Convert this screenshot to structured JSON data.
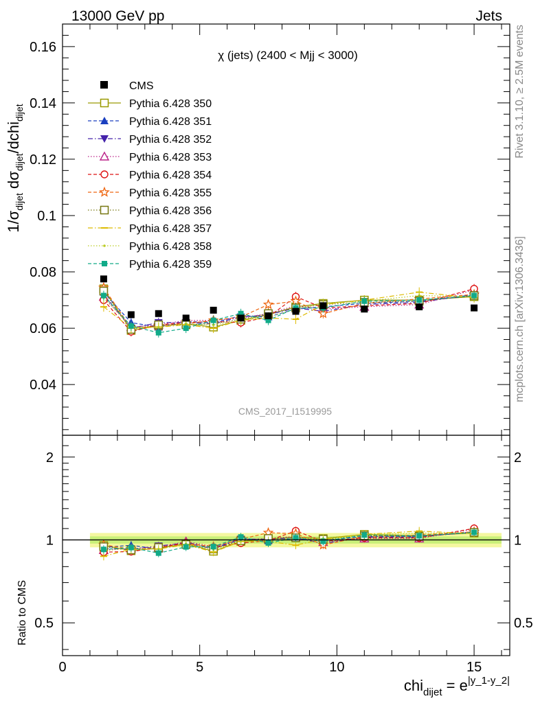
{
  "header": {
    "left": "13000 GeV pp",
    "right": "Jets",
    "side_rivet": "Rivet 3.1.10, ≥ 2.5M events",
    "side_mcplots": "mcplots.cern.ch [arXiv:1306.3436]"
  },
  "chart_data": {
    "type": "scatter",
    "title": "χ (jets) (2400 < Mjj < 3000)",
    "watermark": "CMS_2017_I1519995",
    "ylabel_main": "1/σ_dijet dσ_dijet/dchi_dijet",
    "ylabel_ratio": "Ratio to CMS",
    "xlabel": "chi_dijet = e^|y_1-y_2|",
    "xlim": [
      0,
      16.3
    ],
    "ylim_main": [
      0.022,
      0.168
    ],
    "ylim_ratio": [
      0.38,
      2.4
    ],
    "ratio_log_scale": true,
    "x_ticks": [
      "0",
      "5",
      "10",
      "15"
    ],
    "y_ticks_main": [
      "0.04",
      "0.06",
      "0.08",
      "0.1",
      "0.12",
      "0.14",
      "0.16"
    ],
    "y_ticks_ratio": [
      "0.5",
      "1",
      "2"
    ],
    "x": [
      1.5,
      2.5,
      3.5,
      4.5,
      5.5,
      6.5,
      7.5,
      8.5,
      9.5,
      11.0,
      13.0,
      15.0
    ],
    "data_series": {
      "name": "CMS",
      "values": [
        0.0775,
        0.0648,
        0.0652,
        0.0636,
        0.0664,
        0.0636,
        0.0644,
        0.066,
        0.068,
        0.0668,
        0.0676,
        0.0672
      ],
      "ratio_band_inner": 0.03,
      "ratio_band_outer": 0.06
    },
    "series": [
      {
        "name": "Pythia 6.428 350",
        "color": "#999900",
        "marker": "open-square",
        "dash": "solid",
        "values": [
          0.074,
          0.0592,
          0.0608,
          0.0616,
          0.0604,
          0.0628,
          0.0648,
          0.0676,
          0.0688,
          0.07,
          0.07,
          0.0712
        ]
      },
      {
        "name": "Pythia 6.428 351",
        "color": "#1a3fbf",
        "marker": "filled-triangle-up",
        "dash": "dashed",
        "values": [
          0.0728,
          0.062,
          0.0604,
          0.0624,
          0.062,
          0.0644,
          0.064,
          0.0668,
          0.0676,
          0.0688,
          0.0696,
          0.0716
        ]
      },
      {
        "name": "Pythia 6.428 352",
        "color": "#4422aa",
        "marker": "filled-triangle-down",
        "dash": "dashdot",
        "values": [
          0.072,
          0.06,
          0.062,
          0.062,
          0.0616,
          0.064,
          0.0648,
          0.0672,
          0.066,
          0.0684,
          0.0692,
          0.072
        ]
      },
      {
        "name": "Pythia 6.428 353",
        "color": "#bb2288",
        "marker": "open-triangle-up",
        "dash": "dotted",
        "values": [
          0.0712,
          0.0604,
          0.0612,
          0.0628,
          0.0628,
          0.0636,
          0.0652,
          0.068,
          0.0668,
          0.0676,
          0.0684,
          0.0736
        ]
      },
      {
        "name": "Pythia 6.428 354",
        "color": "#dd1111",
        "marker": "open-circle",
        "dash": "dashed",
        "values": [
          0.07,
          0.0588,
          0.0612,
          0.062,
          0.0624,
          0.062,
          0.064,
          0.0712,
          0.0672,
          0.068,
          0.0688,
          0.074
        ]
      },
      {
        "name": "Pythia 6.428 355",
        "color": "#ee6611",
        "marker": "open-star",
        "dash": "dashed",
        "values": [
          0.0744,
          0.06,
          0.0608,
          0.0616,
          0.0628,
          0.064,
          0.0684,
          0.0696,
          0.0652,
          0.0688,
          0.0704,
          0.072
        ]
      },
      {
        "name": "Pythia 6.428 356",
        "color": "#777711",
        "marker": "open-square",
        "dash": "dotted",
        "values": [
          0.0732,
          0.0596,
          0.0612,
          0.0612,
          0.0616,
          0.0632,
          0.0652,
          0.0672,
          0.0684,
          0.0692,
          0.0696,
          0.0716
        ]
      },
      {
        "name": "Pythia 6.428 357",
        "color": "#ddbb00",
        "marker": "dash",
        "dash": "dashdot",
        "values": [
          0.0676,
          0.06,
          0.0604,
          0.0612,
          0.06,
          0.0628,
          0.0636,
          0.0632,
          0.0684,
          0.07,
          0.0728,
          0.0708
        ]
      },
      {
        "name": "Pythia 6.428 358",
        "color": "#bbcc22",
        "marker": "dot",
        "dash": "dotted",
        "values": [
          0.0708,
          0.0604,
          0.0604,
          0.0616,
          0.0612,
          0.0628,
          0.064,
          0.0668,
          0.0688,
          0.0696,
          0.0716,
          0.0712
        ]
      },
      {
        "name": "Pythia 6.428 359",
        "color": "#11aa88",
        "marker": "filled-square",
        "dash": "dashed",
        "values": [
          0.0716,
          0.0608,
          0.0584,
          0.06,
          0.0628,
          0.0652,
          0.0628,
          0.0672,
          0.0672,
          0.0696,
          0.07,
          0.0716
        ]
      }
    ]
  }
}
